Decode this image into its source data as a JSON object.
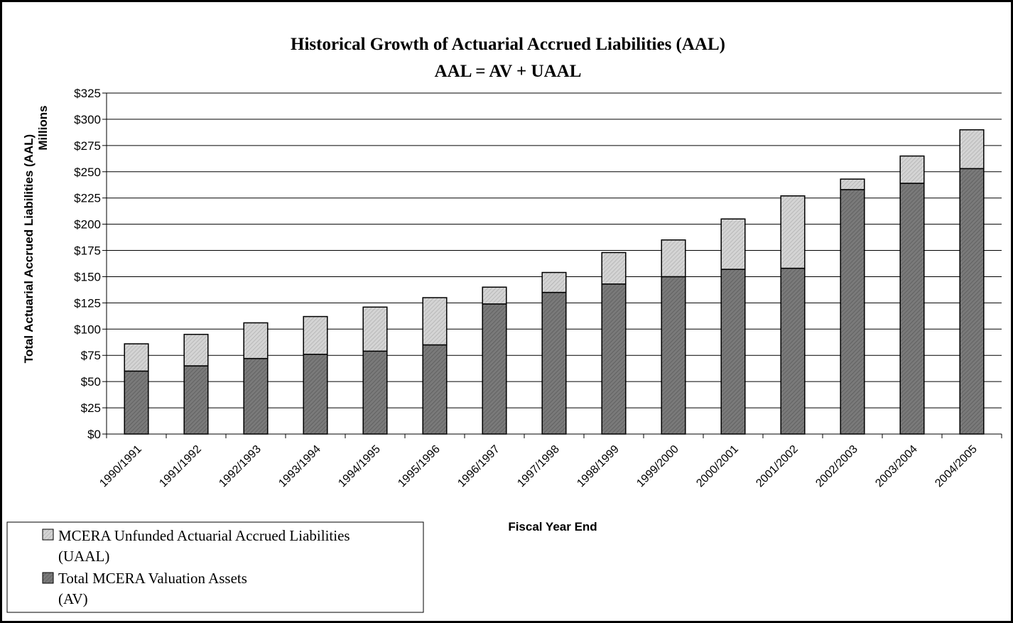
{
  "chart_data": {
    "type": "bar",
    "stacked": true,
    "title": "Historical Growth of Actuarial Accrued Liabilities (AAL)",
    "subtitle": "AAL =  AV + UAAL",
    "xlabel": "Fiscal Year End",
    "ylabel": "Total Actuarial Accrued Liabilities (AAL)",
    "yunit": "Millions",
    "ylim": [
      0,
      325
    ],
    "yticks": [
      0,
      25,
      50,
      75,
      100,
      125,
      150,
      175,
      200,
      225,
      250,
      275,
      300,
      325
    ],
    "ytick_labels": [
      "$0",
      "$25",
      "$50",
      "$75",
      "$100",
      "$125",
      "$150",
      "$175",
      "$200",
      "$225",
      "$250",
      "$275",
      "$300",
      "$325"
    ],
    "grid": true,
    "legend_position": "bottom-left",
    "categories": [
      "1990/1991",
      "1991/1992",
      "1992/1993",
      "1993/1994",
      "1994/1995",
      "1995/1996",
      "1996/1997",
      "1997/1998",
      "1998/1999",
      "1999/2000",
      "2000/2001",
      "2001/2002",
      "2002/2003",
      "2003/2004",
      "2004/2005"
    ],
    "series": [
      {
        "name": "Total MCERA Valuation Assets (AV)",
        "legend_lines": [
          "Total MCERA Valuation Assets",
          "(AV)"
        ],
        "color": "#808080",
        "values": [
          60,
          65,
          72,
          76,
          79,
          85,
          124,
          135,
          143,
          150,
          157,
          158,
          233,
          239,
          253
        ]
      },
      {
        "name": "MCERA Unfunded Actuarial Accrued Liabilities (UAAL)",
        "legend_lines": [
          "MCERA Unfunded Actuarial Accrued Liabilities",
          "(UAAL)"
        ],
        "color": "#c8c8c8",
        "values": [
          26,
          30,
          34,
          36,
          42,
          45,
          16,
          19,
          30,
          35,
          48,
          69,
          10,
          26,
          37
        ]
      }
    ]
  }
}
